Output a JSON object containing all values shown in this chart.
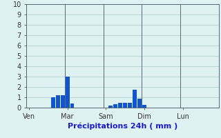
{
  "bar_color": "#1155cc",
  "background_color": "#dff2f2",
  "grid_color": "#aacccc",
  "separator_color": "#556677",
  "ylim": [
    0,
    10
  ],
  "yticks": [
    0,
    1,
    2,
    3,
    4,
    5,
    6,
    7,
    8,
    9,
    10
  ],
  "xlabel": "Précipitations 24h ( mm )",
  "day_labels": [
    "Ven",
    "Mar",
    "Sam",
    "Dim",
    "Lun"
  ],
  "day_tick_positions": [
    0,
    8,
    16,
    24,
    32
  ],
  "day_separator_positions": [
    0,
    8,
    16,
    24,
    32
  ],
  "n_bars": 40,
  "bar_values": [
    0,
    0,
    0,
    0,
    0,
    1.0,
    1.2,
    1.2,
    3.0,
    0.4,
    0,
    0,
    0,
    0,
    0,
    0,
    0,
    0.2,
    0.35,
    0.45,
    0.5,
    0.45,
    1.75,
    0.9,
    0.3,
    0,
    0,
    0,
    0,
    0,
    0,
    0,
    0,
    0,
    0,
    0,
    0,
    0,
    0,
    0
  ]
}
